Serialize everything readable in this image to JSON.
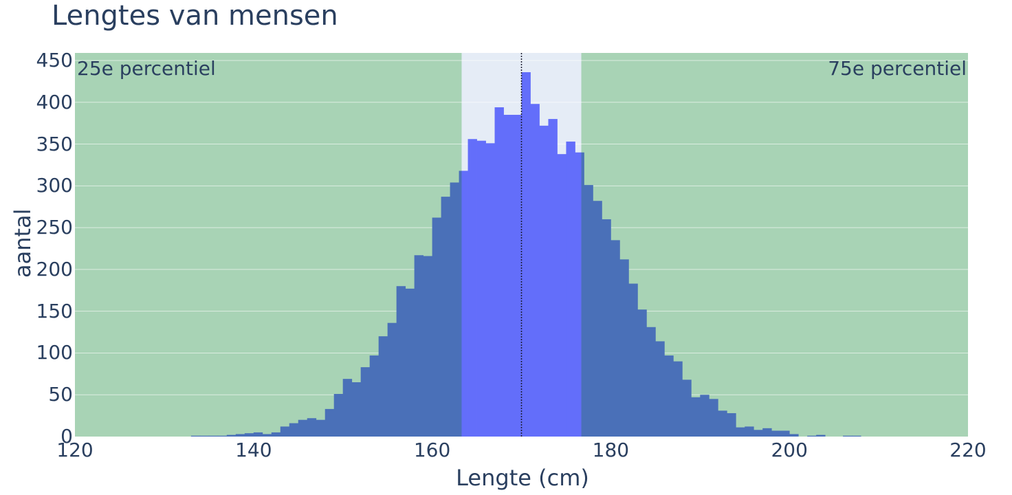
{
  "chart_data": {
    "type": "bar",
    "title": "Lengtes van mensen",
    "xlabel": "Lengte (cm)",
    "ylabel": "aantal",
    "xlim": [
      120,
      220
    ],
    "ylim": [
      0,
      450
    ],
    "grid": true,
    "xticks": [
      120,
      140,
      160,
      180,
      200,
      220
    ],
    "yticks": [
      0,
      50,
      100,
      150,
      200,
      250,
      300,
      350,
      400,
      450
    ],
    "bin_width": 1,
    "bins": [
      {
        "x": 133,
        "y": 1
      },
      {
        "x": 134,
        "y": 1
      },
      {
        "x": 135,
        "y": 1
      },
      {
        "x": 136,
        "y": 1
      },
      {
        "x": 137,
        "y": 2
      },
      {
        "x": 138,
        "y": 3
      },
      {
        "x": 139,
        "y": 4
      },
      {
        "x": 140,
        "y": 5
      },
      {
        "x": 141,
        "y": 3
      },
      {
        "x": 142,
        "y": 5
      },
      {
        "x": 143,
        "y": 12
      },
      {
        "x": 144,
        "y": 16
      },
      {
        "x": 145,
        "y": 20
      },
      {
        "x": 146,
        "y": 22
      },
      {
        "x": 147,
        "y": 20
      },
      {
        "x": 148,
        "y": 33
      },
      {
        "x": 149,
        "y": 51
      },
      {
        "x": 150,
        "y": 69
      },
      {
        "x": 151,
        "y": 65
      },
      {
        "x": 152,
        "y": 83
      },
      {
        "x": 153,
        "y": 97
      },
      {
        "x": 154,
        "y": 120
      },
      {
        "x": 155,
        "y": 136
      },
      {
        "x": 156,
        "y": 180
      },
      {
        "x": 157,
        "y": 177
      },
      {
        "x": 158,
        "y": 217
      },
      {
        "x": 159,
        "y": 216
      },
      {
        "x": 160,
        "y": 262
      },
      {
        "x": 161,
        "y": 287
      },
      {
        "x": 162,
        "y": 304
      },
      {
        "x": 163,
        "y": 318
      },
      {
        "x": 164,
        "y": 356
      },
      {
        "x": 165,
        "y": 354
      },
      {
        "x": 166,
        "y": 351
      },
      {
        "x": 167,
        "y": 394
      },
      {
        "x": 168,
        "y": 385
      },
      {
        "x": 169,
        "y": 385
      },
      {
        "x": 170,
        "y": 436
      },
      {
        "x": 171,
        "y": 398
      },
      {
        "x": 172,
        "y": 372
      },
      {
        "x": 173,
        "y": 380
      },
      {
        "x": 174,
        "y": 338
      },
      {
        "x": 175,
        "y": 353
      },
      {
        "x": 176,
        "y": 340
      },
      {
        "x": 177,
        "y": 301
      },
      {
        "x": 178,
        "y": 282
      },
      {
        "x": 179,
        "y": 260
      },
      {
        "x": 180,
        "y": 235
      },
      {
        "x": 181,
        "y": 212
      },
      {
        "x": 182,
        "y": 183
      },
      {
        "x": 183,
        "y": 152
      },
      {
        "x": 184,
        "y": 131
      },
      {
        "x": 185,
        "y": 114
      },
      {
        "x": 186,
        "y": 97
      },
      {
        "x": 187,
        "y": 90
      },
      {
        "x": 188,
        "y": 68
      },
      {
        "x": 189,
        "y": 47
      },
      {
        "x": 190,
        "y": 50
      },
      {
        "x": 191,
        "y": 45
      },
      {
        "x": 192,
        "y": 31
      },
      {
        "x": 193,
        "y": 28
      },
      {
        "x": 194,
        "y": 11
      },
      {
        "x": 195,
        "y": 12
      },
      {
        "x": 196,
        "y": 8
      },
      {
        "x": 197,
        "y": 10
      },
      {
        "x": 198,
        "y": 7
      },
      {
        "x": 199,
        "y": 7
      },
      {
        "x": 200,
        "y": 3
      },
      {
        "x": 201,
        "y": 0
      },
      {
        "x": 202,
        "y": 1
      },
      {
        "x": 203,
        "y": 2
      },
      {
        "x": 204,
        "y": 0
      },
      {
        "x": 205,
        "y": 0
      },
      {
        "x": 206,
        "y": 1
      },
      {
        "x": 207,
        "y": 1
      }
    ],
    "percentile_25": 163.3,
    "percentile_75": 176.7,
    "mean_line": 170.0,
    "annotations": [
      {
        "text": "25e percentiel",
        "position": "top-left"
      },
      {
        "text": "75e percentiel",
        "position": "top-right"
      }
    ],
    "colors": {
      "bar": "#636efa",
      "bar_shaded": "#4a70b8",
      "plot_bg": "#e5ecf6",
      "shade_bg": "#a8d3b5",
      "grid": "#ffffff",
      "text": "#2a3f5f",
      "mean_line": "#1a1a2e"
    }
  },
  "labels": {
    "title": "Lengtes van mensen",
    "xlabel": "Lengte (cm)",
    "ylabel": "aantal",
    "annot_left": "25e percentiel",
    "annot_right": "75e percentiel"
  }
}
